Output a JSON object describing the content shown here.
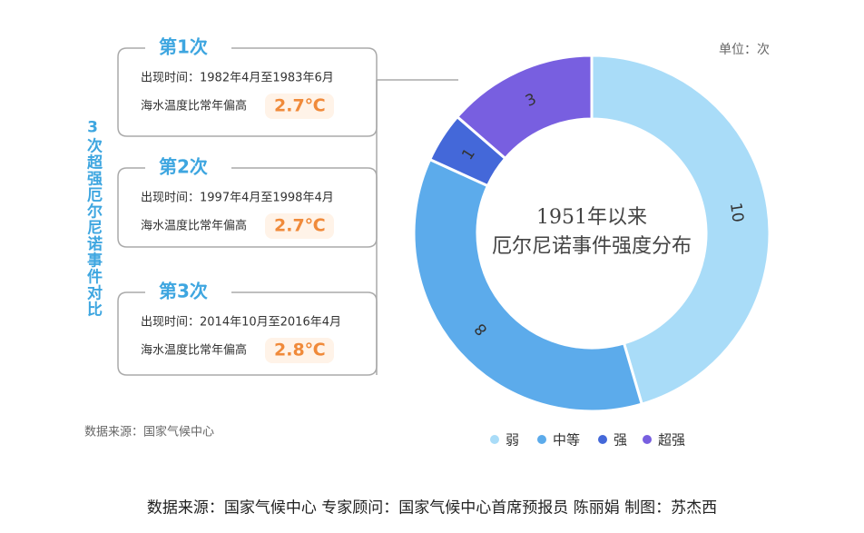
{
  "chart_data": {
    "type": "donut",
    "title_lines": [
      "1951年以来",
      "厄尔尼诺事件强度分布"
    ],
    "unit": "单位：次",
    "categories": [
      "弱",
      "中等",
      "强",
      "超强"
    ],
    "values": [
      10,
      8,
      1,
      3
    ],
    "colors": [
      "#a9dcf8",
      "#5cabeb",
      "#4468d9",
      "#785fe0"
    ]
  },
  "panel": {
    "title": "3次超强厄尔尼诺事件对比",
    "events": [
      {
        "heading": "第1次",
        "period": "出现时间：1982年4月至1983年6月",
        "temp_label": "海水温度比常年偏高",
        "temp": "2.7℃"
      },
      {
        "heading": "第2次",
        "period": "出现时间：1997年4月至1998年4月",
        "temp_label": "海水温度比常年偏高",
        "temp": "2.7℃"
      },
      {
        "heading": "第3次",
        "period": "出现时间：2014年10月至2016年4月",
        "temp_label": "海水温度比常年偏高",
        "temp": "2.8℃"
      }
    ]
  },
  "source": "数据来源：国家气候中心",
  "footer": "数据来源：国家气候中心 专家顾问：国家气候中心首席预报员 陈丽娟 制图：苏杰西"
}
